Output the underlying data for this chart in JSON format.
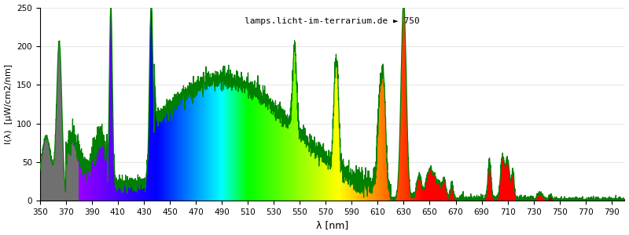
{
  "wl_min": 350,
  "wl_max": 800,
  "ylim": [
    0,
    250
  ],
  "xlabel": "λ [nm]",
  "ylabel": "I(λ)  [μW/cm2/nm]",
  "watermark": "lamps.licht-im-terrarium.de ► 750",
  "xticks": [
    350,
    370,
    390,
    410,
    430,
    450,
    470,
    490,
    510,
    530,
    550,
    570,
    590,
    610,
    630,
    650,
    670,
    690,
    710,
    730,
    750,
    770,
    790
  ],
  "yticks": [
    0,
    50,
    100,
    150,
    200,
    250
  ],
  "bg_color": "#ffffff",
  "grid_color": "#e8e8e8",
  "green_line_color": "#008000"
}
